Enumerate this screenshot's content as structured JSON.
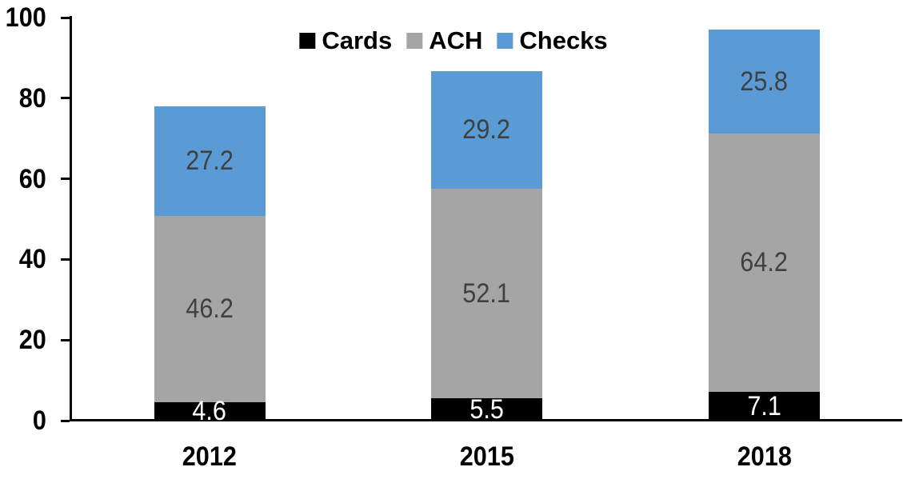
{
  "chart_data": {
    "type": "bar",
    "stacked": true,
    "title": "",
    "categories": [
      "2012",
      "2015",
      "2018"
    ],
    "series": [
      {
        "name": "Cards",
        "color": "#000000",
        "label_color": "#ffffff",
        "values": [
          4.6,
          5.5,
          7.1
        ]
      },
      {
        "name": "ACH",
        "color": "#a5a5a5",
        "label_color": "#404040",
        "values": [
          46.2,
          52.1,
          64.2
        ]
      },
      {
        "name": "Checks",
        "color": "#5b9bd5",
        "label_color": "#404040",
        "values": [
          27.2,
          29.2,
          25.8
        ]
      }
    ],
    "totals": [
      78.0,
      86.8,
      97.1
    ],
    "xlabel": "",
    "ylabel": "",
    "ylim": [
      0,
      100
    ],
    "y_ticks": [
      0,
      20,
      40,
      60,
      80,
      100
    ],
    "grid": false,
    "legend_position": "top-center",
    "legend_labels": [
      "Cards",
      "ACH",
      "Checks"
    ],
    "axis_color": "#000000",
    "background_color": "#ffffff"
  }
}
